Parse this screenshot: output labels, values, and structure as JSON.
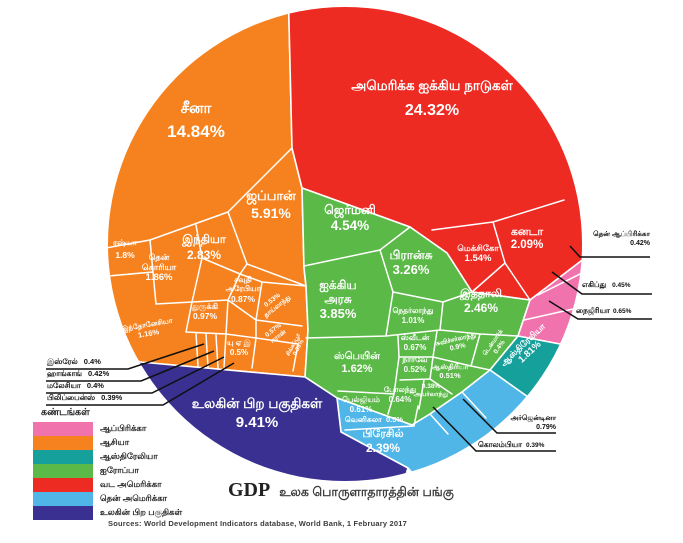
{
  "chart_data": {
    "type": "pie",
    "variant": "voronoi-treemap",
    "title": "GDP",
    "subtitle": "உலக பொருளாதாரத்தின் பங்கு",
    "source": "Sources: World Development Indicators database, World Bank, 1 February 2017",
    "units": "%",
    "legend": {
      "title": "கண்டங்கள்",
      "position": "bottom-left",
      "entries": [
        {
          "label": "ஆப்பிரிக்கா",
          "color": "#F173AE"
        },
        {
          "label": "ஆசியா",
          "color": "#F5821F"
        },
        {
          "label": "ஆஸ்திரேலியா",
          "color": "#16A09C"
        },
        {
          "label": "ஐரோப்பா",
          "color": "#5BB947"
        },
        {
          "label": "வட அமெரிக்கா",
          "color": "#ED2B23"
        },
        {
          "label": "தென் அமெரிக்கா",
          "color": "#4FB6E7"
        },
        {
          "label": "உலகின் பிற பகுதிகள்",
          "color": "#3A3092"
        }
      ]
    },
    "groups": [
      {
        "continent": "வட அமெரிக்கா",
        "color": "#ED2B23",
        "countries": [
          {
            "name": "அமெரிக்க ஐக்கிய நாடுகள்",
            "value": 24.32
          },
          {
            "name": "கனடா",
            "value": 2.09
          },
          {
            "name": "மெக்சிகோ",
            "value": 1.54
          }
        ]
      },
      {
        "continent": "ஆசியா",
        "color": "#F5821F",
        "countries": [
          {
            "name": "சீனா",
            "value": 14.84
          },
          {
            "name": "ஜப்பான்",
            "value": 5.91
          },
          {
            "name": "இந்தியா",
            "value": 2.83
          },
          {
            "name": "தென் கொரியா",
            "value": 1.86
          },
          {
            "name": "ரஷ்யா",
            "value": 1.8
          },
          {
            "name": "இந்தோனேசியா",
            "value": 1.16
          },
          {
            "name": "துருக்கி",
            "value": 0.97
          },
          {
            "name": "சவுதி அரேபியா",
            "value": 0.87
          },
          {
            "name": "ஈரான்",
            "value": 0.57
          },
          {
            "name": "தாய்லாந்து",
            "value": 0.53
          },
          {
            "name": "யு ஏ இ",
            "value": 0.5
          },
          {
            "name": "ஹாங்காங்",
            "value": 0.42
          },
          {
            "name": "இஸ்ரேல்",
            "value": 0.4
          },
          {
            "name": "மலேசியா",
            "value": 0.4
          },
          {
            "name": "சிங்கப்பூர்",
            "value": 0.39
          },
          {
            "name": "பிலிப்பைன்ஸ்",
            "value": 0.39
          }
        ]
      },
      {
        "continent": "ஐரோப்பா",
        "color": "#5BB947",
        "countries": [
          {
            "name": "ஜெர்மனி",
            "value": 4.54
          },
          {
            "name": "ஐக்கிய அரசு",
            "value": 3.85
          },
          {
            "name": "பிரான்சு",
            "value": 3.26
          },
          {
            "name": "இத்தாலி",
            "value": 2.46
          },
          {
            "name": "ஸ்பெயின்",
            "value": 1.62
          },
          {
            "name": "நெதர்லாந்து",
            "value": 1.01
          },
          {
            "name": "சுவிச்சர்லாந்து",
            "value": 0.9
          },
          {
            "name": "ஸ்வீடன்",
            "value": 0.67
          },
          {
            "name": "போலந்து",
            "value": 0.64
          },
          {
            "name": "பெல்ஜியம்",
            "value": 0.61
          },
          {
            "name": "நார்வே",
            "value": 0.52
          },
          {
            "name": "ஆஸ்திரியா",
            "value": 0.51
          },
          {
            "name": "டென்மார்க்",
            "value": 0.4
          },
          {
            "name": "அயர்லாந்து",
            "value": 0.38
          }
        ]
      },
      {
        "continent": "தென் அமெரிக்கா",
        "color": "#4FB6E7",
        "countries": [
          {
            "name": "பிரேசில்",
            "value": 2.39
          },
          {
            "name": "அர்ஜென்டினா",
            "value": 0.79
          },
          {
            "name": "வெனிசுலா",
            "value": 0.5
          },
          {
            "name": "கொலம்பியா",
            "value": 0.39
          }
        ]
      },
      {
        "continent": "ஆப்பிரிக்கா",
        "color": "#F173AE",
        "countries": [
          {
            "name": "நைஜீரியா",
            "value": 0.65
          },
          {
            "name": "எகிப்து",
            "value": 0.45
          },
          {
            "name": "தென் ஆப்பிரிக்கா",
            "value": 0.42
          }
        ]
      },
      {
        "continent": "ஆஸ்திரேலியா",
        "color": "#16A09C",
        "countries": [
          {
            "name": "ஆஸ்திரேலியா",
            "value": 1.81
          }
        ]
      },
      {
        "continent": "உலகின் பிற பகுதிகள்",
        "color": "#3A3092",
        "countries": [
          {
            "name": "உலகின் பிற பகுதிகள்",
            "value": 9.41
          }
        ]
      }
    ]
  }
}
